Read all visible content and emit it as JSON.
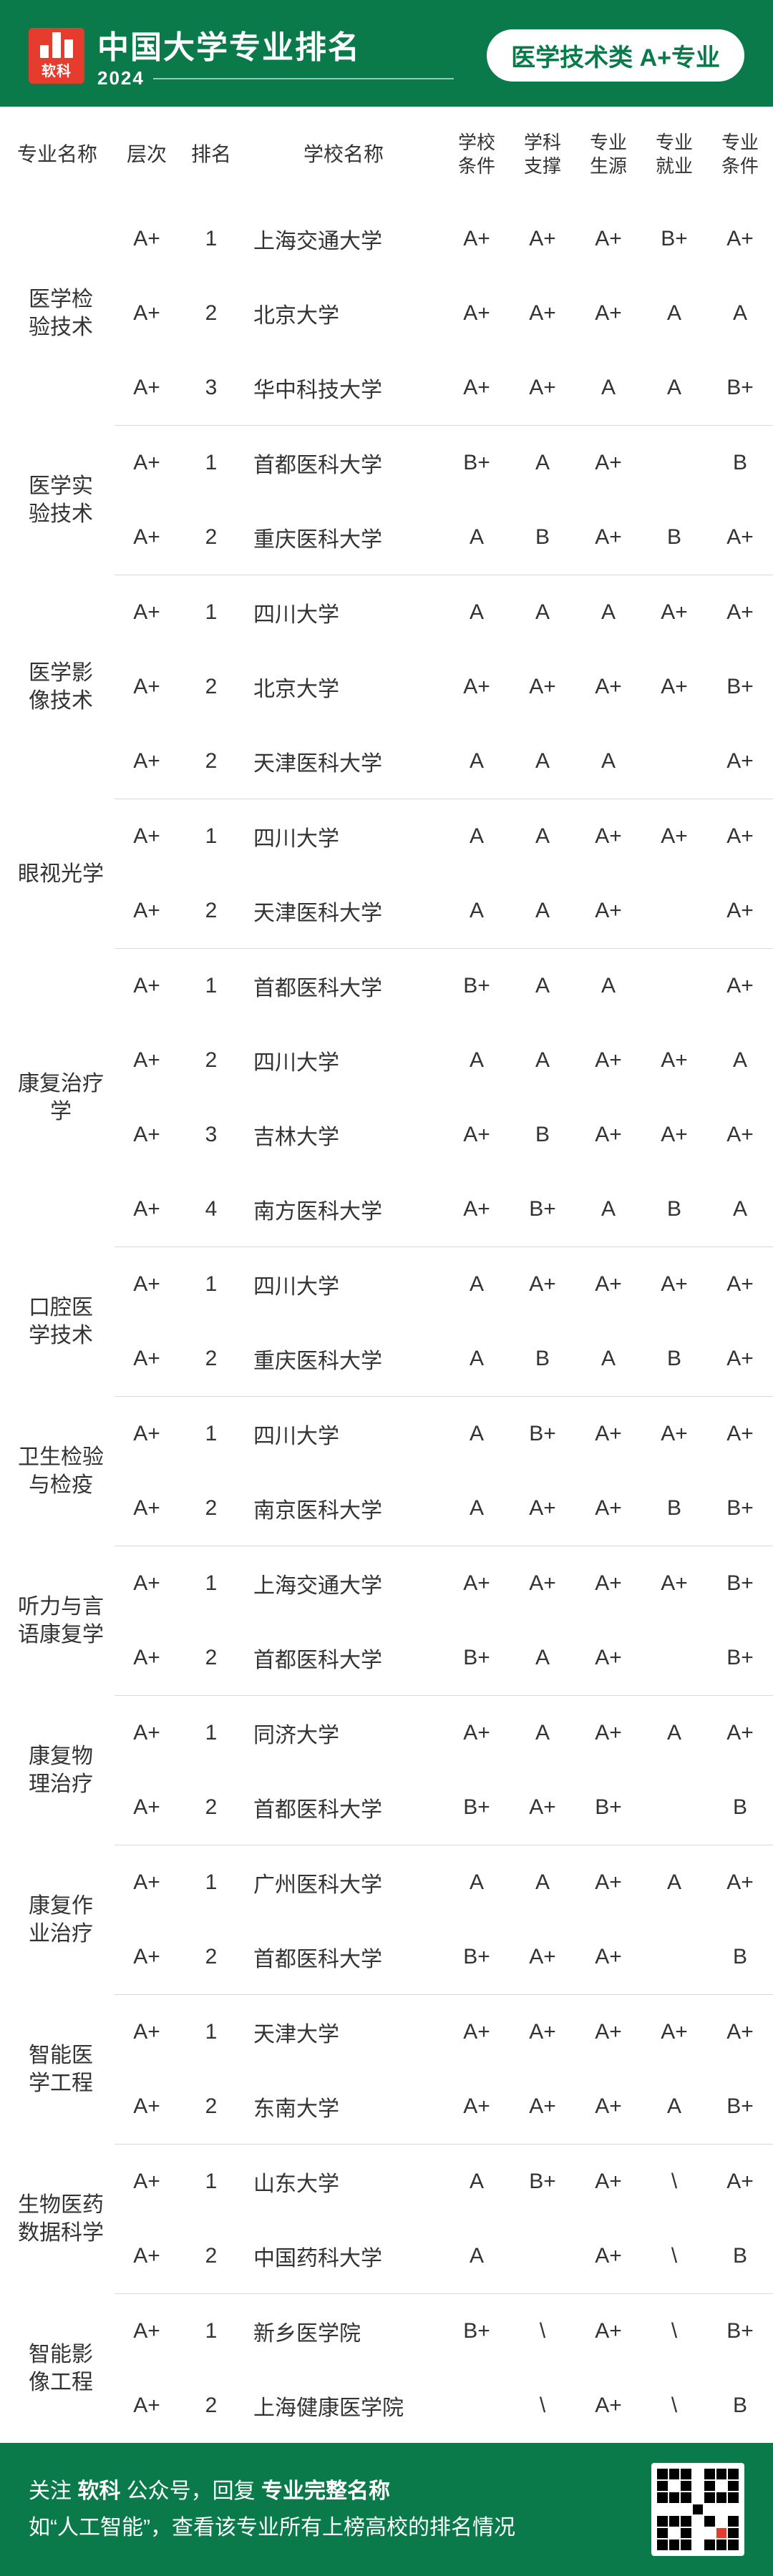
{
  "header": {
    "logo_text": "软科",
    "title": "中国大学专业排名",
    "year": "2024",
    "badge": "医学技术类 A+专业"
  },
  "columns": {
    "major": "专业名称",
    "tier": "层次",
    "rank": "排名",
    "school": "学校名称",
    "m1": "学校条件",
    "m2": "学科支撑",
    "m3": "专业生源",
    "m4": "专业就业",
    "m5": "专业条件"
  },
  "groups": [
    {
      "major": "医学检验技术",
      "rows": [
        {
          "tier": "A+",
          "rank": "1",
          "school": "上海交通大学",
          "m": [
            "A+",
            "A+",
            "A+",
            "B+",
            "A+"
          ]
        },
        {
          "tier": "A+",
          "rank": "2",
          "school": "北京大学",
          "m": [
            "A+",
            "A+",
            "A+",
            "A",
            "A"
          ]
        },
        {
          "tier": "A+",
          "rank": "3",
          "school": "华中科技大学",
          "m": [
            "A+",
            "A+",
            "A",
            "A",
            "B+"
          ]
        }
      ]
    },
    {
      "major": "医学实验技术",
      "rows": [
        {
          "tier": "A+",
          "rank": "1",
          "school": "首都医科大学",
          "m": [
            "B+",
            "A",
            "A+",
            "",
            "B"
          ]
        },
        {
          "tier": "A+",
          "rank": "2",
          "school": "重庆医科大学",
          "m": [
            "A",
            "B",
            "A+",
            "B",
            "A+"
          ]
        }
      ]
    },
    {
      "major": "医学影像技术",
      "rows": [
        {
          "tier": "A+",
          "rank": "1",
          "school": "四川大学",
          "m": [
            "A",
            "A",
            "A",
            "A+",
            "A+"
          ]
        },
        {
          "tier": "A+",
          "rank": "2",
          "school": "北京大学",
          "m": [
            "A+",
            "A+",
            "A+",
            "A+",
            "B+"
          ]
        },
        {
          "tier": "A+",
          "rank": "2",
          "school": "天津医科大学",
          "m": [
            "A",
            "A",
            "A",
            "",
            "A+"
          ]
        }
      ]
    },
    {
      "major": "眼视光学",
      "rows": [
        {
          "tier": "A+",
          "rank": "1",
          "school": "四川大学",
          "m": [
            "A",
            "A",
            "A+",
            "A+",
            "A+"
          ]
        },
        {
          "tier": "A+",
          "rank": "2",
          "school": "天津医科大学",
          "m": [
            "A",
            "A",
            "A+",
            "",
            "A+"
          ]
        }
      ]
    },
    {
      "major": "康复治疗学",
      "rows": [
        {
          "tier": "A+",
          "rank": "1",
          "school": "首都医科大学",
          "m": [
            "B+",
            "A",
            "A",
            "",
            "A+"
          ]
        },
        {
          "tier": "A+",
          "rank": "2",
          "school": "四川大学",
          "m": [
            "A",
            "A",
            "A+",
            "A+",
            "A"
          ]
        },
        {
          "tier": "A+",
          "rank": "3",
          "school": "吉林大学",
          "m": [
            "A+",
            "B",
            "A+",
            "A+",
            "A+"
          ]
        },
        {
          "tier": "A+",
          "rank": "4",
          "school": "南方医科大学",
          "m": [
            "A+",
            "B+",
            "A",
            "B",
            "A"
          ]
        }
      ]
    },
    {
      "major": "口腔医学技术",
      "rows": [
        {
          "tier": "A+",
          "rank": "1",
          "school": "四川大学",
          "m": [
            "A",
            "A+",
            "A+",
            "A+",
            "A+"
          ]
        },
        {
          "tier": "A+",
          "rank": "2",
          "school": "重庆医科大学",
          "m": [
            "A",
            "B",
            "A",
            "B",
            "A+"
          ]
        }
      ]
    },
    {
      "major": "卫生检验与检疫",
      "rows": [
        {
          "tier": "A+",
          "rank": "1",
          "school": "四川大学",
          "m": [
            "A",
            "B+",
            "A+",
            "A+",
            "A+"
          ]
        },
        {
          "tier": "A+",
          "rank": "2",
          "school": "南京医科大学",
          "m": [
            "A",
            "A+",
            "A+",
            "B",
            "B+"
          ]
        }
      ]
    },
    {
      "major": "听力与言语康复学",
      "rows": [
        {
          "tier": "A+",
          "rank": "1",
          "school": "上海交通大学",
          "m": [
            "A+",
            "A+",
            "A+",
            "A+",
            "B+"
          ]
        },
        {
          "tier": "A+",
          "rank": "2",
          "school": "首都医科大学",
          "m": [
            "B+",
            "A",
            "A+",
            "",
            "B+"
          ]
        }
      ]
    },
    {
      "major": "康复物理治疗",
      "rows": [
        {
          "tier": "A+",
          "rank": "1",
          "school": "同济大学",
          "m": [
            "A+",
            "A",
            "A+",
            "A",
            "A+"
          ]
        },
        {
          "tier": "A+",
          "rank": "2",
          "school": "首都医科大学",
          "m": [
            "B+",
            "A+",
            "B+",
            "",
            "B"
          ]
        }
      ]
    },
    {
      "major": "康复作业治疗",
      "rows": [
        {
          "tier": "A+",
          "rank": "1",
          "school": "广州医科大学",
          "m": [
            "A",
            "A",
            "A+",
            "A",
            "A+"
          ]
        },
        {
          "tier": "A+",
          "rank": "2",
          "school": "首都医科大学",
          "m": [
            "B+",
            "A+",
            "A+",
            "",
            "B"
          ]
        }
      ]
    },
    {
      "major": "智能医学工程",
      "rows": [
        {
          "tier": "A+",
          "rank": "1",
          "school": "天津大学",
          "m": [
            "A+",
            "A+",
            "A+",
            "A+",
            "A+"
          ]
        },
        {
          "tier": "A+",
          "rank": "2",
          "school": "东南大学",
          "m": [
            "A+",
            "A+",
            "A+",
            "A",
            "B+"
          ]
        }
      ]
    },
    {
      "major": "生物医药数据科学",
      "rows": [
        {
          "tier": "A+",
          "rank": "1",
          "school": "山东大学",
          "m": [
            "A",
            "B+",
            "A+",
            "\\",
            "A+"
          ]
        },
        {
          "tier": "A+",
          "rank": "2",
          "school": "中国药科大学",
          "m": [
            "A",
            "",
            "A+",
            "\\",
            "B"
          ]
        }
      ]
    },
    {
      "major": "智能影像工程",
      "rows": [
        {
          "tier": "A+",
          "rank": "1",
          "school": "新乡医学院",
          "m": [
            "B+",
            "\\",
            "A+",
            "\\",
            "B+"
          ]
        },
        {
          "tier": "A+",
          "rank": "2",
          "school": "上海健康医学院",
          "m": [
            "",
            "\\",
            "A+",
            "\\",
            "B"
          ]
        }
      ]
    }
  ],
  "footer": {
    "line1_pre": "关注 ",
    "line1_hl1": "软科",
    "line1_mid": " 公众号，回复 ",
    "line1_hl2": "专业完整名称",
    "line2": "如“人工智能”，查看该专业所有上榜高校的排名情况"
  }
}
